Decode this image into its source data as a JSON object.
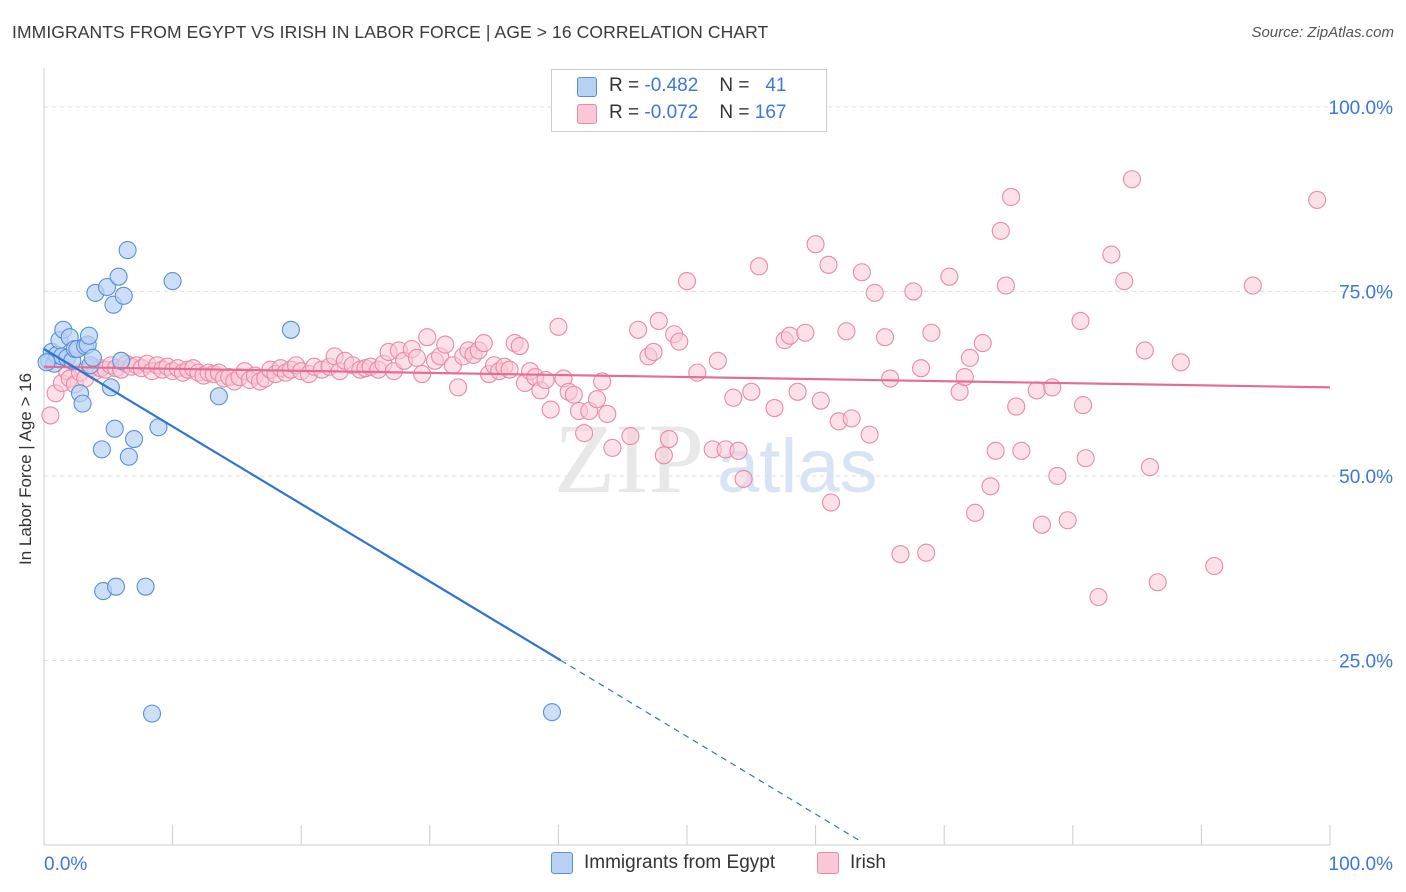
{
  "title": "IMMIGRANTS FROM EGYPT VS IRISH IN LABOR FORCE | AGE > 16 CORRELATION CHART",
  "source": "Source: ZipAtlas.com",
  "watermark": {
    "zip": "ZIP",
    "atlas": "atlas"
  },
  "legend": {
    "r_label": "R =",
    "n_label": "N =",
    "rows": [
      {
        "r": "-0.482",
        "n": "41"
      },
      {
        "r": "-0.072",
        "n": "167"
      }
    ]
  },
  "colors": {
    "egypt_fill": "#b8d1f3",
    "egypt_stroke": "#5a8fd6",
    "egypt_line": "#2f74d0",
    "irish_fill": "#f9c8d6",
    "irish_stroke": "#e88aa8",
    "irish_line": "#e46d96",
    "tick_label": "#3b78d8",
    "grid": "#dddddd"
  },
  "chart_data": {
    "type": "scatter",
    "title": "IMMIGRANTS FROM EGYPT VS IRISH IN LABOR FORCE | AGE > 16 CORRELATION CHART",
    "xlabel": "",
    "ylabel": "In Labor Force | Age > 16",
    "xlim": [
      0,
      100
    ],
    "ylim": [
      0,
      105
    ],
    "x_tick_labels": [
      "0.0%",
      "100.0%"
    ],
    "y_ticks": [
      25,
      50,
      75,
      100
    ],
    "y_tick_labels": [
      "25.0%",
      "50.0%",
      "75.0%",
      "100.0%"
    ],
    "grid": true,
    "legend_position": "top-center",
    "series": [
      {
        "name": "Immigrants from Egypt",
        "r": -0.482,
        "n": 41,
        "trend": {
          "x": [
            0,
            40.2
          ],
          "y": [
            67.2,
            25.0
          ],
          "dashed_to": [
            63.6,
            0.4
          ]
        },
        "points": [
          [
            0.4,
            65.6
          ],
          [
            0.6,
            66.8
          ],
          [
            0.8,
            65.2
          ],
          [
            1.0,
            66.4
          ],
          [
            1.2,
            68.4
          ],
          [
            1.4,
            66.2
          ],
          [
            1.5,
            69.8
          ],
          [
            1.8,
            66.0
          ],
          [
            2.0,
            68.8
          ],
          [
            2.2,
            65.6
          ],
          [
            2.4,
            67.2
          ],
          [
            2.6,
            67.2
          ],
          [
            2.8,
            61.2
          ],
          [
            3.0,
            59.8
          ],
          [
            3.2,
            67.6
          ],
          [
            3.4,
            67.8
          ],
          [
            3.5,
            69.0
          ],
          [
            3.6,
            65.0
          ],
          [
            3.8,
            66.0
          ],
          [
            4.0,
            74.8
          ],
          [
            4.5,
            53.6
          ],
          [
            4.6,
            34.4
          ],
          [
            4.9,
            75.6
          ],
          [
            5.2,
            62.0
          ],
          [
            5.4,
            73.2
          ],
          [
            5.5,
            56.4
          ],
          [
            5.6,
            35.0
          ],
          [
            5.8,
            77.0
          ],
          [
            6.0,
            65.6
          ],
          [
            6.2,
            74.4
          ],
          [
            6.5,
            80.6
          ],
          [
            6.6,
            52.6
          ],
          [
            7.0,
            55.0
          ],
          [
            7.9,
            35.0
          ],
          [
            8.4,
            17.8
          ],
          [
            8.9,
            56.6
          ],
          [
            10.0,
            76.4
          ],
          [
            13.6,
            60.8
          ],
          [
            19.2,
            69.8
          ],
          [
            39.5,
            18.0
          ],
          [
            0.2,
            65.4
          ]
        ]
      },
      {
        "name": "Irish",
        "r": -0.072,
        "n": 167,
        "trend": {
          "x": [
            0,
            100
          ],
          "y": [
            64.8,
            62.0
          ]
        },
        "points": [
          [
            0.5,
            58.2
          ],
          [
            0.9,
            61.2
          ],
          [
            1.4,
            62.6
          ],
          [
            1.8,
            64.2
          ],
          [
            2.0,
            63.2
          ],
          [
            2.4,
            62.4
          ],
          [
            2.8,
            64.0
          ],
          [
            3.2,
            63.2
          ],
          [
            3.6,
            64.6
          ],
          [
            4.0,
            64.2
          ],
          [
            4.4,
            64.6
          ],
          [
            4.8,
            64.4
          ],
          [
            5.2,
            65.0
          ],
          [
            5.6,
            64.6
          ],
          [
            6.0,
            64.4
          ],
          [
            6.4,
            65.2
          ],
          [
            6.8,
            64.8
          ],
          [
            7.2,
            65.0
          ],
          [
            7.6,
            64.6
          ],
          [
            8.0,
            65.2
          ],
          [
            8.4,
            64.2
          ],
          [
            8.8,
            65.0
          ],
          [
            9.2,
            64.4
          ],
          [
            9.6,
            64.8
          ],
          [
            10.0,
            64.2
          ],
          [
            10.4,
            64.6
          ],
          [
            10.8,
            64.0
          ],
          [
            11.2,
            64.4
          ],
          [
            11.6,
            64.6
          ],
          [
            12.0,
            64.0
          ],
          [
            12.4,
            63.6
          ],
          [
            12.8,
            64.0
          ],
          [
            13.2,
            63.8
          ],
          [
            13.6,
            64.0
          ],
          [
            14.0,
            63.2
          ],
          [
            14.4,
            63.4
          ],
          [
            14.8,
            62.8
          ],
          [
            15.2,
            63.4
          ],
          [
            15.6,
            64.2
          ],
          [
            16.0,
            63.0
          ],
          [
            16.4,
            63.6
          ],
          [
            16.8,
            62.8
          ],
          [
            17.2,
            63.2
          ],
          [
            17.6,
            64.4
          ],
          [
            18.0,
            63.8
          ],
          [
            18.4,
            64.6
          ],
          [
            18.8,
            64.0
          ],
          [
            19.2,
            64.4
          ],
          [
            19.6,
            65.0
          ],
          [
            20.0,
            64.2
          ],
          [
            20.6,
            63.8
          ],
          [
            21.0,
            64.8
          ],
          [
            21.6,
            64.4
          ],
          [
            22.2,
            64.8
          ],
          [
            22.6,
            66.2
          ],
          [
            23.0,
            64.2
          ],
          [
            23.4,
            65.6
          ],
          [
            24.0,
            65.0
          ],
          [
            24.6,
            64.4
          ],
          [
            25.0,
            64.6
          ],
          [
            25.4,
            64.8
          ],
          [
            26.0,
            64.4
          ],
          [
            26.4,
            65.2
          ],
          [
            26.8,
            66.8
          ],
          [
            27.2,
            64.2
          ],
          [
            27.6,
            67.0
          ],
          [
            28.0,
            65.6
          ],
          [
            28.6,
            67.2
          ],
          [
            29.0,
            66.0
          ],
          [
            29.4,
            63.8
          ],
          [
            29.8,
            68.8
          ],
          [
            30.4,
            65.6
          ],
          [
            30.8,
            66.2
          ],
          [
            31.2,
            67.8
          ],
          [
            31.8,
            65.0
          ],
          [
            32.2,
            62.0
          ],
          [
            32.6,
            66.2
          ],
          [
            33.0,
            67.0
          ],
          [
            33.4,
            66.4
          ],
          [
            33.8,
            67.0
          ],
          [
            34.2,
            68.0
          ],
          [
            34.6,
            63.8
          ],
          [
            35.0,
            65.0
          ],
          [
            35.4,
            64.2
          ],
          [
            35.8,
            64.8
          ],
          [
            36.2,
            64.4
          ],
          [
            36.6,
            68.0
          ],
          [
            37.0,
            67.6
          ],
          [
            37.4,
            62.6
          ],
          [
            37.8,
            64.2
          ],
          [
            38.2,
            63.4
          ],
          [
            38.6,
            61.6
          ],
          [
            39.0,
            63.0
          ],
          [
            39.4,
            59.0
          ],
          [
            40.0,
            70.2
          ],
          [
            40.4,
            63.2
          ],
          [
            40.8,
            61.4
          ],
          [
            41.2,
            61.0
          ],
          [
            41.6,
            58.8
          ],
          [
            42.0,
            55.8
          ],
          [
            42.4,
            58.8
          ],
          [
            43.0,
            60.4
          ],
          [
            43.4,
            62.8
          ],
          [
            43.8,
            58.4
          ],
          [
            44.2,
            53.8
          ],
          [
            45.6,
            55.4
          ],
          [
            46.2,
            69.8
          ],
          [
            47.0,
            66.2
          ],
          [
            47.4,
            66.8
          ],
          [
            47.8,
            71.0
          ],
          [
            48.2,
            52.8
          ],
          [
            48.6,
            55.0
          ],
          [
            49.0,
            69.2
          ],
          [
            49.4,
            68.2
          ],
          [
            50.0,
            76.4
          ],
          [
            50.8,
            64.0
          ],
          [
            52.0,
            53.6
          ],
          [
            52.4,
            65.6
          ],
          [
            53.0,
            53.6
          ],
          [
            53.6,
            60.6
          ],
          [
            54.0,
            53.4
          ],
          [
            54.4,
            49.6
          ],
          [
            55.0,
            61.4
          ],
          [
            55.6,
            78.4
          ],
          [
            56.8,
            59.2
          ],
          [
            57.6,
            68.4
          ],
          [
            58.0,
            69.0
          ],
          [
            58.6,
            61.4
          ],
          [
            59.2,
            69.4
          ],
          [
            60.0,
            81.4
          ],
          [
            60.4,
            60.2
          ],
          [
            61.0,
            78.6
          ],
          [
            61.2,
            46.4
          ],
          [
            61.8,
            57.4
          ],
          [
            62.4,
            69.6
          ],
          [
            62.8,
            57.8
          ],
          [
            63.6,
            77.6
          ],
          [
            64.2,
            55.6
          ],
          [
            64.6,
            74.8
          ],
          [
            65.4,
            68.8
          ],
          [
            65.8,
            63.2
          ],
          [
            66.6,
            39.4
          ],
          [
            67.6,
            75.0
          ],
          [
            68.2,
            64.6
          ],
          [
            68.6,
            39.6
          ],
          [
            69.0,
            69.4
          ],
          [
            70.4,
            77.0
          ],
          [
            71.2,
            61.4
          ],
          [
            71.6,
            63.4
          ],
          [
            72.0,
            66.0
          ],
          [
            72.4,
            45.0
          ],
          [
            73.0,
            68.0
          ],
          [
            73.6,
            48.6
          ],
          [
            74.0,
            53.4
          ],
          [
            74.4,
            83.2
          ],
          [
            74.8,
            75.8
          ],
          [
            75.2,
            87.8
          ],
          [
            75.6,
            59.4
          ],
          [
            76.0,
            53.4
          ],
          [
            77.2,
            61.6
          ],
          [
            77.6,
            43.4
          ],
          [
            78.4,
            62.0
          ],
          [
            78.8,
            50.0
          ],
          [
            79.6,
            44.0
          ],
          [
            80.6,
            71.0
          ],
          [
            80.8,
            59.6
          ],
          [
            81.0,
            52.4
          ],
          [
            82.0,
            33.6
          ],
          [
            83.0,
            80.0
          ],
          [
            84.0,
            76.4
          ],
          [
            84.6,
            90.2
          ],
          [
            85.6,
            67.0
          ],
          [
            86.0,
            51.2
          ],
          [
            86.6,
            35.6
          ],
          [
            88.4,
            65.4
          ],
          [
            91.0,
            37.8
          ],
          [
            94.0,
            75.8
          ],
          [
            99.0,
            87.4
          ]
        ]
      }
    ]
  },
  "bottom_legend": [
    "Immigrants from Egypt",
    "Irish"
  ]
}
